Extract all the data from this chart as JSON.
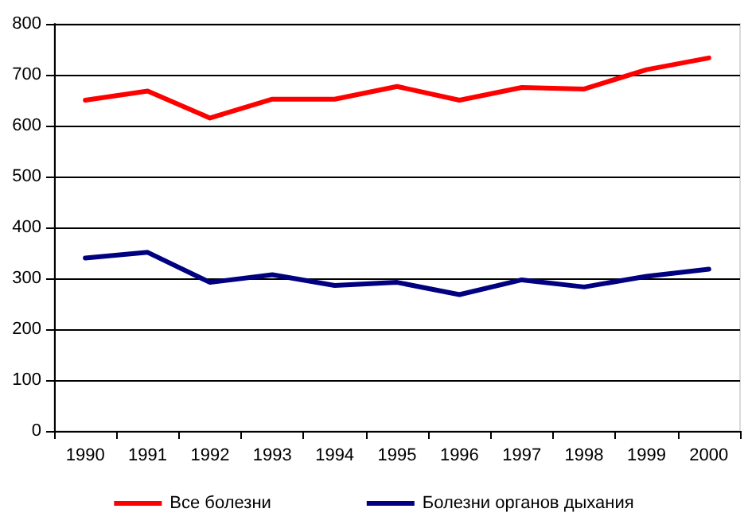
{
  "chart_data": {
    "type": "line",
    "categories": [
      "1990",
      "1991",
      "1992",
      "1993",
      "1994",
      "1995",
      "1996",
      "1997",
      "1998",
      "1999",
      "2000"
    ],
    "series": [
      {
        "name": "Все болезни",
        "color": "#ff0000",
        "values": [
          650,
          668,
          615,
          652,
          652,
          677,
          650,
          675,
          672,
          710,
          733
        ]
      },
      {
        "name": "Болезни органов дыхания",
        "color": "#000080",
        "values": [
          340,
          351,
          292,
          307,
          286,
          292,
          268,
          297,
          283,
          304,
          318
        ]
      }
    ],
    "ylim": [
      0,
      800
    ],
    "yticks": [
      0,
      100,
      200,
      300,
      400,
      500,
      600,
      700,
      800
    ],
    "grid": "y",
    "legend": "bottom",
    "marker": "none",
    "line_style": "solid"
  }
}
